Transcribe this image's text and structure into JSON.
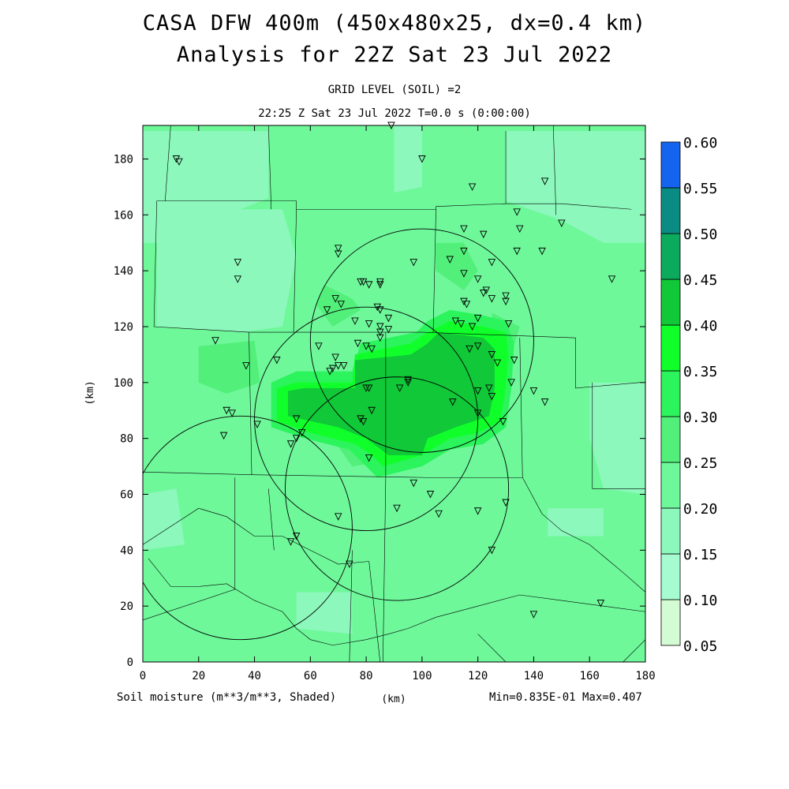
{
  "titles": {
    "line1": "CASA DFW 400m (450x480x25, dx=0.4 km)",
    "line2": "Analysis for 22Z Sat 23 Jul 2022",
    "grid_level": "GRID LEVEL (SOIL) =2",
    "time": "22:25 Z Sat 23 Jul 2022   T=0.0 s (0:00:00)"
  },
  "footer": {
    "field": "Soil moisture (m**3/m**3, Shaded)",
    "units": "(km)",
    "minmax": "Min=0.835E-01 Max=0.407"
  },
  "colors": {
    "c005": "#d4fcd4",
    "c010": "#a6fcd0",
    "c015": "#8cf8bc",
    "c020": "#6ef89a",
    "c025": "#52f07a",
    "c030": "#2cf45c",
    "c035": "#10ff2a",
    "c040": "#10c838",
    "c045": "#0caa5c",
    "c050": "#0a8c84",
    "c055": "#1464f0"
  },
  "chart_data": {
    "type": "heatmap",
    "xlabel": "(km)",
    "ylabel": "(km)",
    "xlim": [
      0,
      180
    ],
    "ylim": [
      0,
      192
    ],
    "xticks": [
      0,
      20,
      40,
      60,
      80,
      100,
      120,
      140,
      160,
      180
    ],
    "yticks": [
      0,
      20,
      40,
      60,
      80,
      100,
      120,
      140,
      160,
      180
    ],
    "colorbar": {
      "levels": [
        0.05,
        0.1,
        0.15,
        0.2,
        0.25,
        0.3,
        0.35,
        0.4,
        0.45,
        0.5,
        0.55,
        0.6
      ],
      "labels": [
        "0.05",
        "0.10",
        "0.15",
        "0.20",
        "0.25",
        "0.30",
        "0.35",
        "0.40",
        "0.45",
        "0.50",
        "0.55",
        "0.60"
      ]
    },
    "min": 0.0835,
    "max": 0.407,
    "regions": [
      {
        "level": 0.2,
        "poly": [
          [
            0,
            0
          ],
          [
            180,
            0
          ],
          [
            180,
            192
          ],
          [
            0,
            192
          ]
        ]
      },
      {
        "level": 0.15,
        "poly": [
          [
            0,
            190
          ],
          [
            45,
            190
          ],
          [
            45,
            166
          ],
          [
            30,
            160
          ],
          [
            10,
            158
          ],
          [
            5,
            150
          ],
          [
            0,
            150
          ]
        ]
      },
      {
        "level": 0.15,
        "poly": [
          [
            5,
            162
          ],
          [
            50,
            162
          ],
          [
            55,
            145
          ],
          [
            50,
            120
          ],
          [
            35,
            118
          ],
          [
            5,
            120
          ]
        ]
      },
      {
        "level": 0.15,
        "poly": [
          [
            130,
            190
          ],
          [
            180,
            190
          ],
          [
            180,
            150
          ],
          [
            165,
            150
          ],
          [
            150,
            158
          ],
          [
            130,
            165
          ]
        ]
      },
      {
        "level": 0.15,
        "poly": [
          [
            90,
            192
          ],
          [
            100,
            192
          ],
          [
            100,
            170
          ],
          [
            90,
            168
          ]
        ]
      },
      {
        "level": 0.15,
        "poly": [
          [
            160,
            100
          ],
          [
            180,
            100
          ],
          [
            180,
            60
          ],
          [
            165,
            62
          ],
          [
            160,
            80
          ]
        ]
      },
      {
        "level": 0.15,
        "poly": [
          [
            55,
            25
          ],
          [
            75,
            25
          ],
          [
            75,
            10
          ],
          [
            55,
            12
          ]
        ]
      },
      {
        "level": 0.15,
        "poly": [
          [
            145,
            55
          ],
          [
            165,
            55
          ],
          [
            165,
            45
          ],
          [
            145,
            45
          ]
        ]
      },
      {
        "level": 0.15,
        "poly": [
          [
            0,
            60
          ],
          [
            12,
            62
          ],
          [
            15,
            42
          ],
          [
            0,
            40
          ]
        ]
      },
      {
        "level": 0.25,
        "poly": [
          [
            20,
            113
          ],
          [
            40,
            115
          ],
          [
            42,
            100
          ],
          [
            30,
            96
          ],
          [
            20,
            100
          ]
        ]
      },
      {
        "level": 0.25,
        "poly": [
          [
            65,
            135
          ],
          [
            75,
            130
          ],
          [
            78,
            126
          ],
          [
            68,
            120
          ],
          [
            62,
            128
          ]
        ]
      },
      {
        "level": 0.25,
        "poly": [
          [
            105,
            150
          ],
          [
            115,
            150
          ],
          [
            120,
            140
          ],
          [
            115,
            133
          ],
          [
            105,
            140
          ]
        ]
      },
      {
        "level": 0.25,
        "poly": [
          [
            125,
            125
          ],
          [
            135,
            120
          ],
          [
            132,
            110
          ],
          [
            125,
            112
          ]
        ]
      },
      {
        "level": 0.25,
        "poly": [
          [
            70,
            77
          ],
          [
            85,
            79
          ],
          [
            88,
            72
          ],
          [
            75,
            70
          ]
        ]
      },
      {
        "level": 0.3,
        "poly": [
          [
            46,
            100
          ],
          [
            55,
            104
          ],
          [
            75,
            104
          ],
          [
            78,
            114
          ],
          [
            98,
            118
          ],
          [
            102,
            122
          ],
          [
            110,
            126
          ],
          [
            122,
            124
          ],
          [
            130,
            122
          ],
          [
            133,
            114
          ],
          [
            132,
            98
          ],
          [
            130,
            84
          ],
          [
            122,
            78
          ],
          [
            110,
            76
          ],
          [
            100,
            70
          ],
          [
            84,
            66
          ],
          [
            80,
            70
          ],
          [
            74,
            76
          ],
          [
            58,
            80
          ],
          [
            46,
            84
          ]
        ]
      },
      {
        "level": 0.35,
        "poly": [
          [
            48,
            98
          ],
          [
            55,
            100
          ],
          [
            75,
            100
          ],
          [
            76,
            110
          ],
          [
            96,
            114
          ],
          [
            102,
            118
          ],
          [
            110,
            122
          ],
          [
            122,
            120
          ],
          [
            130,
            118
          ],
          [
            131,
            110
          ],
          [
            130,
            98
          ],
          [
            128,
            86
          ],
          [
            120,
            82
          ],
          [
            110,
            80
          ],
          [
            100,
            74
          ],
          [
            86,
            70
          ],
          [
            82,
            74
          ],
          [
            76,
            78
          ],
          [
            60,
            82
          ],
          [
            48,
            86
          ]
        ]
      },
      {
        "level": 0.4,
        "poly": [
          [
            52,
            97
          ],
          [
            58,
            98
          ],
          [
            76,
            98
          ],
          [
            76,
            108
          ],
          [
            96,
            110
          ],
          [
            102,
            114
          ],
          [
            106,
            118
          ],
          [
            122,
            116
          ],
          [
            126,
            112
          ],
          [
            126,
            98
          ],
          [
            124,
            88
          ],
          [
            112,
            84
          ],
          [
            102,
            80
          ],
          [
            100,
            74
          ],
          [
            88,
            74
          ],
          [
            80,
            80
          ],
          [
            70,
            84
          ],
          [
            52,
            88
          ]
        ]
      }
    ],
    "range_rings": [
      {
        "center": [
          100,
          115
        ],
        "radius": 40
      },
      {
        "center": [
          80,
          87
        ],
        "radius": 40
      },
      {
        "center": [
          91,
          62
        ],
        "radius": 40
      },
      {
        "center": [
          35,
          48
        ],
        "radius": 40
      }
    ],
    "county_lines": [
      [
        [
          45,
          192
        ],
        [
          46,
          162
        ]
      ],
      [
        [
          5,
          165
        ],
        [
          55,
          165
        ],
        [
          55,
          162
        ],
        [
          105,
          162
        ]
      ],
      [
        [
          105,
          162
        ],
        [
          105,
          163
        ],
        [
          130,
          164
        ],
        [
          150,
          164
        ],
        [
          175,
          162
        ]
      ],
      [
        [
          5,
          165
        ],
        [
          4,
          120
        ],
        [
          38,
          118
        ],
        [
          100,
          118
        ]
      ],
      [
        [
          38,
          118
        ],
        [
          39,
          67
        ],
        [
          0,
          68
        ]
      ],
      [
        [
          39,
          67
        ],
        [
          102,
          66
        ]
      ],
      [
        [
          55,
          162
        ],
        [
          54,
          118
        ]
      ],
      [
        [
          105,
          162
        ],
        [
          104,
          118
        ]
      ],
      [
        [
          100,
          118
        ],
        [
          155,
          116
        ]
      ],
      [
        [
          155,
          116
        ],
        [
          155,
          98
        ],
        [
          178,
          100
        ]
      ],
      [
        [
          130,
          164
        ],
        [
          130,
          190
        ]
      ],
      [
        [
          147,
          192
        ],
        [
          148,
          160
        ]
      ],
      [
        [
          87,
          118
        ],
        [
          87,
          66
        ]
      ],
      [
        [
          87,
          66
        ],
        [
          86,
          0
        ]
      ],
      [
        [
          135,
          116
        ],
        [
          136,
          66
        ]
      ],
      [
        [
          102,
          66
        ],
        [
          136,
          66
        ],
        [
          143,
          53
        ],
        [
          150,
          47
        ],
        [
          160,
          42
        ],
        [
          172,
          32
        ],
        [
          180,
          25
        ]
      ],
      [
        [
          161,
          100
        ],
        [
          161,
          62
        ],
        [
          180,
          62
        ]
      ],
      [
        [
          0,
          42
        ],
        [
          20,
          55
        ],
        [
          30,
          52
        ],
        [
          40,
          45
        ],
        [
          50,
          45
        ],
        [
          60,
          40
        ],
        [
          70,
          35
        ],
        [
          81,
          36
        ]
      ],
      [
        [
          2,
          37
        ],
        [
          10,
          27
        ],
        [
          20,
          27
        ],
        [
          30,
          28
        ],
        [
          40,
          22
        ],
        [
          50,
          18
        ],
        [
          55,
          12
        ],
        [
          60,
          8
        ],
        [
          68,
          6
        ],
        [
          80,
          8
        ],
        [
          88,
          10
        ],
        [
          95,
          12
        ],
        [
          105,
          16
        ],
        [
          120,
          20
        ],
        [
          135,
          24
        ],
        [
          150,
          22
        ],
        [
          165,
          20
        ],
        [
          180,
          18
        ]
      ],
      [
        [
          33,
          66
        ],
        [
          33,
          26
        ],
        [
          0,
          15
        ]
      ],
      [
        [
          81,
          36
        ],
        [
          85,
          0
        ]
      ],
      [
        [
          75,
          40
        ],
        [
          74,
          0
        ]
      ],
      [
        [
          45,
          62
        ],
        [
          47,
          40
        ]
      ],
      [
        [
          120,
          10
        ],
        [
          130,
          0
        ]
      ],
      [
        [
          172,
          0
        ],
        [
          180,
          8
        ]
      ],
      [
        [
          10,
          192
        ],
        [
          8,
          165
        ]
      ]
    ],
    "station_markers": [
      [
        12,
        180
      ],
      [
        13,
        179
      ],
      [
        89,
        192
      ],
      [
        100,
        180
      ],
      [
        118,
        170
      ],
      [
        144,
        172
      ],
      [
        134,
        161
      ],
      [
        150,
        157
      ],
      [
        115,
        155
      ],
      [
        135,
        155
      ],
      [
        122,
        153
      ],
      [
        34,
        143
      ],
      [
        34,
        137
      ],
      [
        70,
        148
      ],
      [
        70,
        146
      ],
      [
        97,
        143
      ],
      [
        110,
        144
      ],
      [
        134,
        147
      ],
      [
        143,
        147
      ],
      [
        168,
        137
      ],
      [
        115,
        147
      ],
      [
        125,
        143
      ],
      [
        79,
        136
      ],
      [
        81,
        135
      ],
      [
        85,
        136
      ],
      [
        85,
        135
      ],
      [
        78,
        136
      ],
      [
        115,
        139
      ],
      [
        120,
        137
      ],
      [
        123,
        133
      ],
      [
        122,
        132
      ],
      [
        125,
        130
      ],
      [
        130,
        131
      ],
      [
        69,
        130
      ],
      [
        71,
        128
      ],
      [
        66,
        126
      ],
      [
        84,
        127
      ],
      [
        85,
        126
      ],
      [
        76,
        122
      ],
      [
        88,
        123
      ],
      [
        115,
        129
      ],
      [
        116,
        128
      ],
      [
        130,
        129
      ],
      [
        85,
        120
      ],
      [
        85,
        118
      ],
      [
        88,
        119
      ],
      [
        81,
        121
      ],
      [
        112,
        122
      ],
      [
        114,
        121
      ],
      [
        118,
        120
      ],
      [
        120,
        123
      ],
      [
        131,
        121
      ],
      [
        26,
        115
      ],
      [
        63,
        113
      ],
      [
        77,
        114
      ],
      [
        80,
        113
      ],
      [
        82,
        112
      ],
      [
        85,
        116
      ],
      [
        117,
        112
      ],
      [
        120,
        113
      ],
      [
        125,
        110
      ],
      [
        127,
        107
      ],
      [
        133,
        108
      ],
      [
        37,
        106
      ],
      [
        48,
        108
      ],
      [
        69,
        109
      ],
      [
        68,
        105
      ],
      [
        70,
        106
      ],
      [
        72,
        106
      ],
      [
        67,
        104
      ],
      [
        92,
        98
      ],
      [
        95,
        101
      ],
      [
        95,
        100
      ],
      [
        81,
        98
      ],
      [
        80,
        98
      ],
      [
        124,
        98
      ],
      [
        132,
        100
      ],
      [
        140,
        97
      ],
      [
        30,
        90
      ],
      [
        32,
        89
      ],
      [
        29,
        81
      ],
      [
        41,
        85
      ],
      [
        53,
        78
      ],
      [
        55,
        80
      ],
      [
        78,
        87
      ],
      [
        79,
        86
      ],
      [
        82,
        90
      ],
      [
        111,
        93
      ],
      [
        120,
        97
      ],
      [
        120,
        89
      ],
      [
        125,
        95
      ],
      [
        129,
        86
      ],
      [
        144,
        93
      ],
      [
        81,
        73
      ],
      [
        55,
        87
      ],
      [
        57,
        82
      ],
      [
        97,
        64
      ],
      [
        103,
        60
      ],
      [
        91,
        55
      ],
      [
        120,
        54
      ],
      [
        106,
        53
      ],
      [
        70,
        52
      ],
      [
        130,
        57
      ],
      [
        55,
        45
      ],
      [
        53,
        43
      ],
      [
        74,
        35
      ],
      [
        125,
        40
      ],
      [
        140,
        17
      ],
      [
        164,
        21
      ]
    ]
  }
}
